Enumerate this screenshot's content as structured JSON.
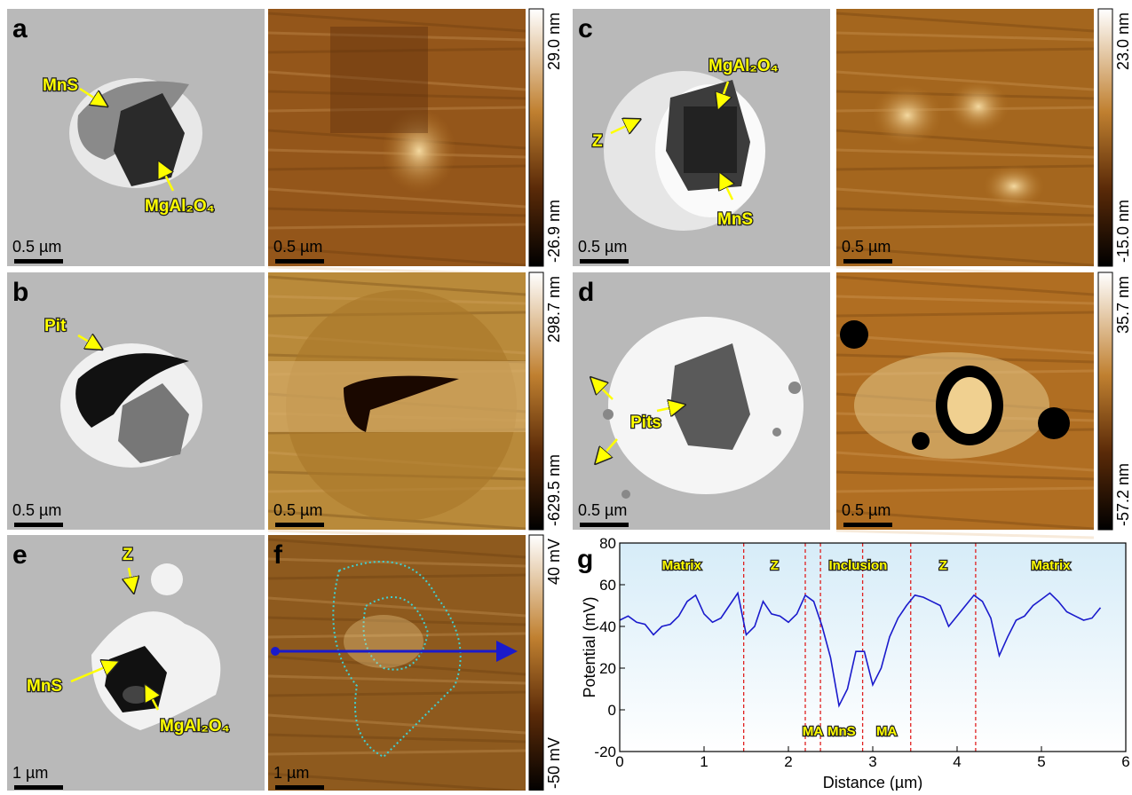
{
  "panels": [
    {
      "label": "a",
      "sem_scale": "0.5 µm",
      "map_scale": "0.5 µm",
      "colorbar": [
        "29.0 nm",
        "-26.9 nm"
      ],
      "annotations": [
        "MnS",
        "MgAl₂O₄"
      ]
    },
    {
      "label": "b",
      "sem_scale": "0.5 µm",
      "map_scale": "0.5 µm",
      "colorbar": [
        "298.7 nm",
        "-629.5 nm"
      ],
      "annotations": [
        "Pit"
      ]
    },
    {
      "label": "c",
      "sem_scale": "0.5 µm",
      "map_scale": "0.5 µm",
      "colorbar": [
        "23.0 nm",
        "-15.0 nm"
      ],
      "annotations": [
        "MgAl₂O₄",
        "Z",
        "MnS"
      ]
    },
    {
      "label": "d",
      "sem_scale": "0.5 µm",
      "map_scale": "0.5 µm",
      "colorbar": [
        "35.7 nm",
        "-57.2 nm"
      ],
      "annotations": [
        "Pits"
      ]
    },
    {
      "label": "e",
      "map_label": "f",
      "sem_scale": "1 µm",
      "map_scale": "1 µm",
      "colorbar": [
        "40 mV",
        "-50 mV"
      ],
      "annotations": [
        "Z",
        "MnS",
        "MgAl₂O₄"
      ]
    }
  ],
  "chart": {
    "type": "line",
    "label": "g",
    "x_label": "Distance (µm)",
    "y_label": "Potential (mV)",
    "color": "#1a1acc",
    "x": [
      0,
      0.1,
      0.2,
      0.3,
      0.4,
      0.5,
      0.6,
      0.7,
      0.8,
      0.9,
      1.0,
      1.1,
      1.2,
      1.3,
      1.4,
      1.5,
      1.6,
      1.7,
      1.8,
      1.9,
      2.0,
      2.1,
      2.2,
      2.3,
      2.4,
      2.5,
      2.6,
      2.7,
      2.8,
      2.9,
      3.0,
      3.1,
      3.2,
      3.3,
      3.4,
      3.5,
      3.6,
      3.7,
      3.8,
      3.9,
      4.0,
      4.1,
      4.2,
      4.3,
      4.4,
      4.5,
      4.6,
      4.7,
      4.8,
      4.9,
      5.0,
      5.1,
      5.2,
      5.3,
      5.4,
      5.5,
      5.6,
      5.7
    ],
    "values": [
      43,
      45,
      42,
      41,
      36,
      40,
      41,
      45,
      52,
      55,
      46,
      42,
      44,
      50,
      56,
      36,
      40,
      52,
      46,
      45,
      42,
      46,
      55,
      52,
      40,
      25,
      2,
      10,
      28,
      28,
      12,
      20,
      35,
      44,
      50,
      55,
      54,
      52,
      50,
      40,
      45,
      50,
      55,
      52,
      44,
      26,
      35,
      43,
      45,
      50,
      53,
      56,
      52,
      47,
      45,
      43,
      44,
      49
    ],
    "xlim": [
      0,
      6
    ],
    "ylim": [
      -20,
      80
    ],
    "xticks": [
      0,
      1,
      2,
      3,
      4,
      5,
      6
    ],
    "yticks": [
      -20,
      0,
      20,
      40,
      60,
      80
    ],
    "dividers": [
      1.47,
      2.2,
      2.38,
      2.88,
      3.45,
      4.22
    ],
    "regions_top": [
      "Matrix",
      "Z",
      "Inclusion",
      "Z",
      "Matrix"
    ],
    "regions_bottom": [
      "MA",
      "MnS",
      "MA"
    ]
  }
}
